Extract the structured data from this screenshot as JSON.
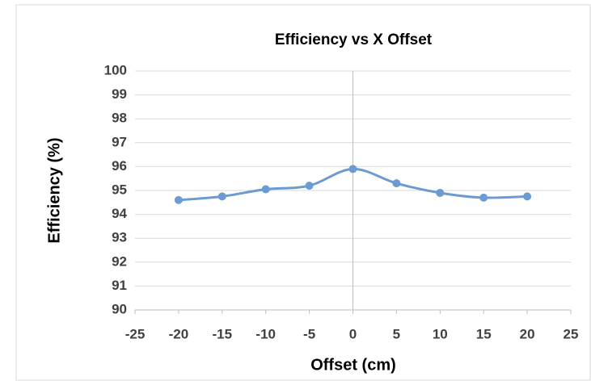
{
  "chart_data": {
    "type": "line",
    "title": "Efficiency vs X Offset",
    "xlabel": "Offset (cm)",
    "ylabel": "Efficiency (%)",
    "x": [
      -20,
      -15,
      -10,
      -5,
      0,
      5,
      10,
      15,
      20
    ],
    "series": [
      {
        "name": "Efficiency",
        "color": "#6b9bd1",
        "values": [
          94.6,
          94.75,
          95.05,
          95.2,
          95.9,
          95.3,
          94.9,
          94.7,
          94.75
        ]
      }
    ],
    "xlim": [
      -25,
      25
    ],
    "xticks": [
      -25,
      -20,
      -15,
      -10,
      -5,
      0,
      5,
      10,
      15,
      20,
      25
    ],
    "ylim": [
      90,
      100
    ],
    "yticks": [
      90,
      91,
      92,
      93,
      94,
      95,
      96,
      97,
      98,
      99,
      100
    ],
    "grid": true,
    "smooth": true
  }
}
